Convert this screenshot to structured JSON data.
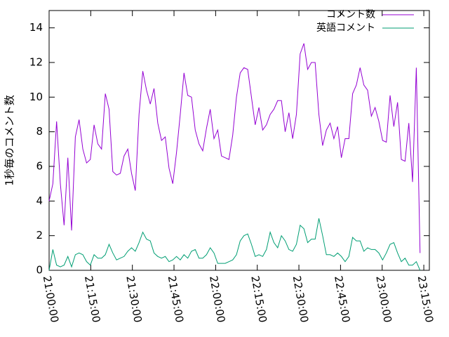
{
  "chart_data": {
    "type": "line",
    "y_label": "1秒毎のコメント数",
    "x": [
      1260,
      1261.35,
      1262.7,
      1264.05,
      1265.4,
      1266.75,
      1268.1,
      1269.45,
      1270.8,
      1272.15,
      1273.5,
      1274.85,
      1276.2,
      1277.55,
      1278.9,
      1280.25,
      1281.6,
      1282.95,
      1284.3,
      1285.65,
      1287,
      1288.35,
      1289.7,
      1291.05,
      1292.4,
      1293.75,
      1295.1,
      1296.45,
      1297.8,
      1299.15,
      1300.5,
      1301.85,
      1303.2,
      1304.55,
      1305.9,
      1307.25,
      1308.6,
      1309.95,
      1311.3,
      1312.65,
      1314,
      1315.35,
      1316.7,
      1318.05,
      1319.4,
      1320.75,
      1322.1,
      1323.45,
      1324.8,
      1326.15,
      1327.5,
      1328.85,
      1330.2,
      1331.55,
      1332.9,
      1334.25,
      1335.6,
      1336.95,
      1338.3,
      1339.65,
      1341,
      1342.35,
      1343.7,
      1345.05,
      1346.4,
      1347.75,
      1349.1,
      1350.45,
      1351.8,
      1353.15,
      1354.5,
      1355.85,
      1357.2,
      1358.55,
      1359.9,
      1361.25,
      1362.6,
      1363.95,
      1365.3,
      1366.65,
      1368,
      1369.35,
      1370.7,
      1372.05,
      1373.4,
      1374.75,
      1376.1,
      1377.45,
      1378.8,
      1380.15,
      1381.5,
      1382.85,
      1384.2,
      1385.55,
      1386.9,
      1388.25,
      1389.6,
      1390.95,
      1392.3,
      1393.65
    ],
    "series": [
      {
        "name": "コメント数",
        "color": "#9400d3",
        "values": [
          4.0,
          5.0,
          8.6,
          5.0,
          2.6,
          6.5,
          2.3,
          7.7,
          8.7,
          7.0,
          6.2,
          6.4,
          8.4,
          7.3,
          7.0,
          10.2,
          9.3,
          5.7,
          5.5,
          5.6,
          6.6,
          7.0,
          5.6,
          4.6,
          9.0,
          11.5,
          10.4,
          9.6,
          10.5,
          8.5,
          7.5,
          7.7,
          5.9,
          5.0,
          6.8,
          9.0,
          11.4,
          10.1,
          10.0,
          8.1,
          7.3,
          6.9,
          8.2,
          9.3,
          7.6,
          8.1,
          6.6,
          6.5,
          6.4,
          7.8,
          10.0,
          11.4,
          11.7,
          11.6,
          10.0,
          8.4,
          9.4,
          8.1,
          8.4,
          9.0,
          9.3,
          9.8,
          9.8,
          8.0,
          9.1,
          7.6,
          9.0,
          12.5,
          13.1,
          11.6,
          12.0,
          12.0,
          9.0,
          7.2,
          8.1,
          8.5,
          7.6,
          8.3,
          6.5,
          7.6,
          7.6,
          10.2,
          10.7,
          11.7,
          10.7,
          10.4,
          8.9,
          9.4,
          8.6,
          7.5,
          7.4,
          10.1,
          8.3,
          9.7,
          6.4,
          6.3,
          8.5,
          5.1,
          11.7,
          1.0
        ]
      },
      {
        "name": "英語コメント",
        "color": "#009e73",
        "values": [
          0.0,
          1.2,
          0.3,
          0.2,
          0.3,
          0.8,
          0.2,
          0.9,
          1.0,
          0.9,
          0.5,
          0.3,
          0.9,
          0.7,
          0.7,
          0.9,
          1.5,
          1.0,
          0.6,
          0.7,
          0.8,
          1.1,
          1.3,
          1.1,
          1.6,
          2.2,
          1.8,
          1.7,
          1.0,
          0.8,
          0.7,
          0.8,
          0.5,
          0.6,
          0.8,
          0.6,
          0.9,
          0.7,
          1.1,
          1.2,
          0.7,
          0.7,
          0.9,
          1.3,
          1.0,
          0.4,
          0.4,
          0.4,
          0.5,
          0.6,
          0.9,
          1.7,
          2.0,
          2.1,
          1.5,
          0.8,
          0.9,
          0.8,
          1.2,
          2.2,
          1.6,
          1.3,
          2.0,
          1.7,
          1.2,
          1.1,
          1.5,
          2.6,
          2.4,
          1.6,
          1.8,
          1.8,
          3.0,
          2.0,
          0.9,
          0.9,
          0.8,
          1.0,
          0.8,
          0.5,
          0.8,
          1.9,
          1.7,
          1.7,
          1.1,
          1.3,
          1.2,
          1.2,
          1.0,
          0.6,
          1.0,
          1.5,
          1.6,
          1.0,
          0.5,
          0.7,
          0.3,
          0.3,
          0.5,
          0.0
        ]
      }
    ],
    "xlim": [
      1260,
      1397
    ],
    "xticks": [
      {
        "value": 1260,
        "label": "21:00:00"
      },
      {
        "value": 1275,
        "label": "21:15:00"
      },
      {
        "value": 1290,
        "label": "21:30:00"
      },
      {
        "value": 1305,
        "label": "21:45:00"
      },
      {
        "value": 1320,
        "label": "22:00:00"
      },
      {
        "value": 1335,
        "label": "22:15:00"
      },
      {
        "value": 1350,
        "label": "22:30:00"
      },
      {
        "value": 1365,
        "label": "22:45:00"
      },
      {
        "value": 1380,
        "label": "23:00:00"
      },
      {
        "value": 1395,
        "label": "23:15:00"
      }
    ],
    "ylim": [
      0,
      15
    ],
    "yticks": [
      0,
      2,
      4,
      6,
      8,
      10,
      12,
      14
    ],
    "legend": "top right"
  }
}
